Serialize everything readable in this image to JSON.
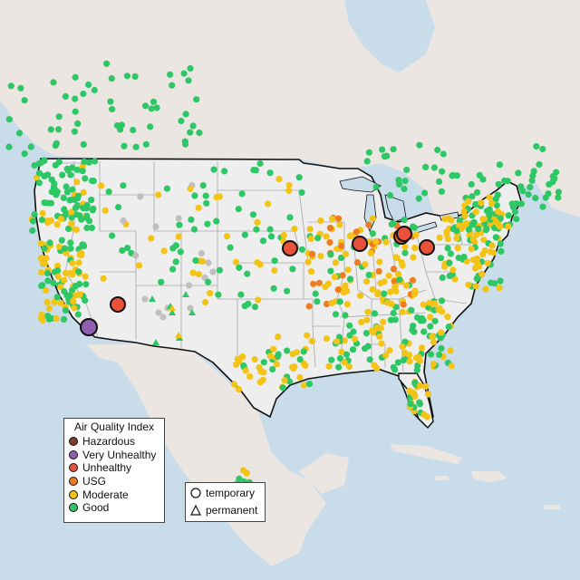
{
  "legend": {
    "title": "Air Quality Index",
    "categories": [
      {
        "label": "Hazardous",
        "color": "#7e3b2a"
      },
      {
        "label": "Very Unhealthy",
        "color": "#8f5fb0"
      },
      {
        "label": "Unhealthy",
        "color": "#e8513a"
      },
      {
        "label": "USG",
        "color": "#ee7d1f"
      },
      {
        "label": "Moderate",
        "color": "#f3c316"
      },
      {
        "label": "Good",
        "color": "#2ec766"
      }
    ],
    "monitor_types": [
      {
        "label": "temporary",
        "shape": "circle"
      },
      {
        "label": "permanent",
        "shape": "triangle"
      }
    ]
  },
  "colors": {
    "water": "#c9dcea",
    "land": "#efe8e4",
    "usa": "#eeeeee",
    "border": "#111111",
    "state_lines": "#a8a8a8",
    "no_data": "#bfbfbf"
  }
}
